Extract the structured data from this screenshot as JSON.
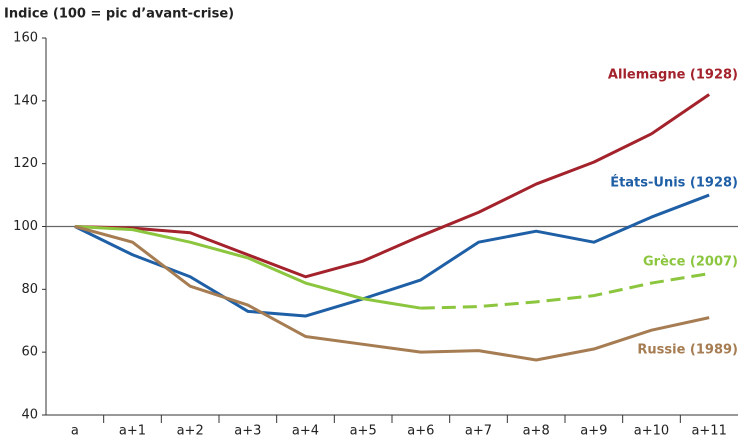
{
  "chart_data": {
    "type": "line",
    "title": "Indice (100 = pic d’avant-crise)",
    "categories": [
      "a",
      "a+1",
      "a+2",
      "a+3",
      "a+4",
      "a+5",
      "a+6",
      "a+7",
      "a+8",
      "a+9",
      "a+10",
      "a+11"
    ],
    "series": [
      {
        "name": "Allemagne (1928)",
        "color": "#a3222b",
        "values": [
          100,
          99.5,
          98,
          91,
          84,
          89,
          97,
          104.5,
          113.5,
          120.5,
          129.5,
          142
        ]
      },
      {
        "name": "États-Unis (1928)",
        "color": "#1f5fa6",
        "values": [
          100,
          91,
          84,
          73,
          71.5,
          77,
          83,
          95,
          98.5,
          95,
          103,
          110
        ]
      },
      {
        "name": "Grèce (2007)",
        "color": "#8cc63f",
        "values": [
          100,
          99,
          95,
          90,
          82,
          77,
          74,
          74.5,
          76,
          78,
          82,
          85
        ],
        "dashed_from": "a+6"
      },
      {
        "name": "Russie (1989)",
        "color": "#a67c52",
        "values": [
          100,
          95,
          81,
          75,
          65,
          62.5,
          60,
          60.5,
          57.5,
          61,
          67,
          71
        ]
      }
    ],
    "ylim": [
      40,
      160
    ],
    "yticks": [
      40,
      60,
      80,
      100,
      120,
      140,
      160
    ],
    "reference_line": 100
  }
}
